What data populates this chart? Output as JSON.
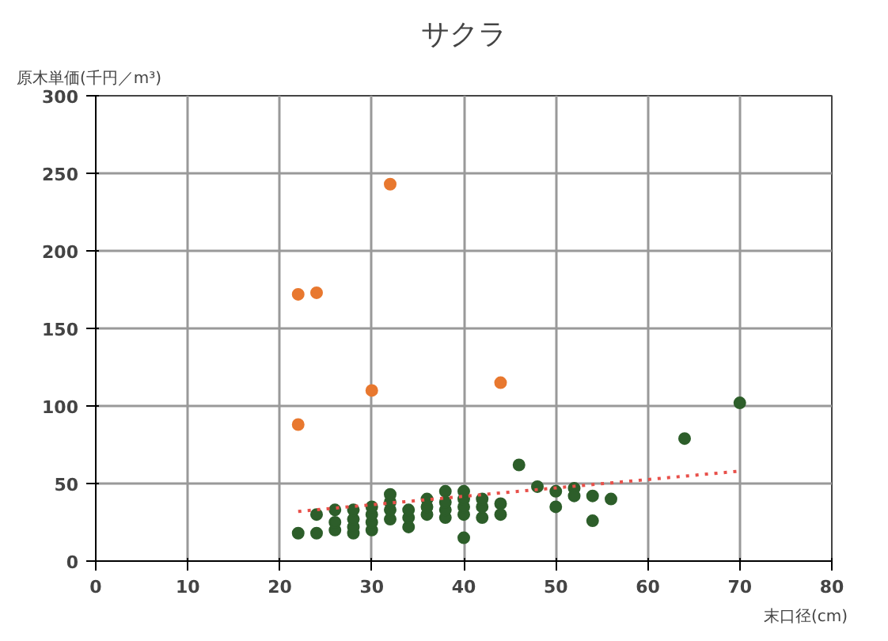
{
  "chart_data": {
    "type": "scatter",
    "title": "サクラ",
    "xlabel": "末口径(cm)",
    "ylabel": "原木単価(千円／m³)",
    "xlim": [
      0,
      80
    ],
    "ylim": [
      0,
      300
    ],
    "xticks": [
      0,
      10,
      20,
      30,
      40,
      50,
      60,
      70,
      80
    ],
    "yticks": [
      0,
      50,
      100,
      150,
      200,
      250,
      300
    ],
    "grid": true,
    "marker": "circle",
    "series": [
      {
        "color": "#2d5e2a",
        "x": [
          22,
          24,
          24,
          26,
          26,
          26,
          28,
          28,
          28,
          28,
          30,
          30,
          30,
          30,
          32,
          32,
          32,
          32,
          34,
          34,
          34,
          36,
          36,
          36,
          38,
          38,
          38,
          38,
          40,
          40,
          40,
          40,
          40,
          42,
          42,
          42,
          44,
          44,
          46,
          48,
          50,
          50,
          52,
          52,
          54,
          54,
          56,
          64,
          70
        ],
        "values": [
          18,
          18,
          30,
          20,
          25,
          33,
          18,
          22,
          27,
          33,
          20,
          25,
          30,
          35,
          27,
          33,
          38,
          43,
          22,
          28,
          33,
          30,
          35,
          40,
          28,
          33,
          38,
          45,
          15,
          30,
          35,
          40,
          45,
          28,
          35,
          40,
          30,
          37,
          62,
          48,
          45,
          35,
          47,
          42,
          42,
          26,
          40,
          79,
          102
        ]
      },
      {
        "color": "#e8782f",
        "x": [
          22,
          24,
          32,
          22,
          30,
          44
        ],
        "values": [
          172,
          173,
          243,
          88,
          110,
          115
        ]
      },
      {
        "type": "line",
        "color": "#e8504a",
        "line_style": "dotted",
        "marker": "none",
        "x": [
          22,
          70
        ],
        "values": [
          32,
          58
        ]
      }
    ]
  }
}
